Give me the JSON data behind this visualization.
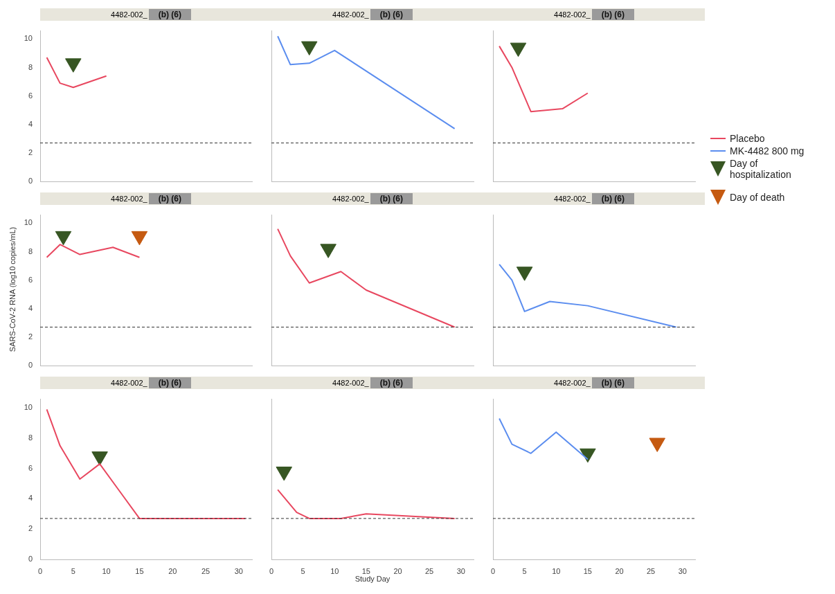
{
  "chart_data": [
    {
      "type": "line",
      "title": "4482-002_",
      "subtitle": "(b) (6)",
      "xlim": [
        0,
        32
      ],
      "xticks": [
        0,
        5,
        10,
        15,
        20,
        25,
        30
      ],
      "ylim": [
        0,
        10.6
      ],
      "yticks": [
        0,
        2,
        4,
        6,
        8,
        10
      ],
      "tick_labels": "y",
      "legend": "right",
      "ref_lines": [
        {
          "axis": "y",
          "value": 2.7,
          "line_style": "dashed",
          "color": "#333333"
        }
      ],
      "series": [
        {
          "name": "Placebo",
          "color": "#e8475f",
          "x": [
            1,
            3,
            5,
            10
          ],
          "values": [
            8.7,
            6.9,
            6.6,
            7.4
          ]
        },
        {
          "name": "Day of hospitalization",
          "type": "scatter",
          "marker": "triangle",
          "color": "#375623",
          "x": [
            5
          ],
          "values": [
            8.3
          ]
        }
      ]
    },
    {
      "type": "line",
      "title": "4482-002_",
      "subtitle": "(b) (6)",
      "xlim": [
        0,
        32
      ],
      "xticks": [
        0,
        5,
        10,
        15,
        20,
        25,
        30
      ],
      "ylim": [
        0,
        10.6
      ],
      "yticks": [
        0,
        2,
        4,
        6,
        8,
        10
      ],
      "tick_labels": false,
      "ref_lines": [
        {
          "axis": "y",
          "value": 2.7,
          "line_style": "dashed",
          "color": "#333333"
        }
      ],
      "series": [
        {
          "name": "MK-4482 800 mg",
          "color": "#5b8def",
          "x": [
            1,
            3,
            6,
            10,
            29
          ],
          "values": [
            10.2,
            8.2,
            8.3,
            9.2,
            3.7
          ]
        },
        {
          "name": "Day of hospitalization",
          "type": "scatter",
          "marker": "triangle",
          "color": "#375623",
          "x": [
            6
          ],
          "values": [
            9.5
          ]
        }
      ]
    },
    {
      "type": "line",
      "title": "4482-002_",
      "subtitle": "(b) (6)",
      "xlim": [
        0,
        32
      ],
      "xticks": [
        0,
        5,
        10,
        15,
        20,
        25,
        30
      ],
      "ylim": [
        0,
        10.6
      ],
      "yticks": [
        0,
        2,
        4,
        6,
        8,
        10
      ],
      "tick_labels": false,
      "ref_lines": [
        {
          "axis": "y",
          "value": 2.7,
          "line_style": "dashed",
          "color": "#333333"
        }
      ],
      "series": [
        {
          "name": "Placebo",
          "color": "#e8475f",
          "x": [
            1,
            3,
            6,
            11,
            15
          ],
          "values": [
            9.5,
            8.0,
            4.9,
            5.1,
            6.2
          ]
        },
        {
          "name": "Day of hospitalization",
          "type": "scatter",
          "marker": "triangle",
          "color": "#375623",
          "x": [
            4
          ],
          "values": [
            9.4
          ]
        }
      ]
    },
    {
      "type": "line",
      "title": "4482-002_",
      "subtitle": "(b) (6)",
      "ylabel": "SARS-CoV-2 RNA (log10 copies/mL)",
      "xlim": [
        0,
        32
      ],
      "xticks": [
        0,
        5,
        10,
        15,
        20,
        25,
        30
      ],
      "ylim": [
        0,
        10.6
      ],
      "yticks": [
        0,
        2,
        4,
        6,
        8,
        10
      ],
      "tick_labels": "y",
      "ref_lines": [
        {
          "axis": "y",
          "value": 2.7,
          "line_style": "dashed",
          "color": "#333333"
        }
      ],
      "series": [
        {
          "name": "Placebo",
          "color": "#e8475f",
          "x": [
            1,
            3,
            6,
            11,
            15
          ],
          "values": [
            7.6,
            8.5,
            7.8,
            8.3,
            7.6
          ]
        },
        {
          "name": "Day of hospitalization",
          "type": "scatter",
          "marker": "triangle",
          "color": "#375623",
          "x": [
            3.5
          ],
          "values": [
            9.1
          ]
        },
        {
          "name": "Day of death",
          "type": "scatter",
          "marker": "triangle",
          "color": "#c55a11",
          "x": [
            15
          ],
          "values": [
            9.1
          ]
        }
      ]
    },
    {
      "type": "line",
      "title": "4482-002_",
      "subtitle": "(b) (6)",
      "xlim": [
        0,
        32
      ],
      "xticks": [
        0,
        5,
        10,
        15,
        20,
        25,
        30
      ],
      "ylim": [
        0,
        10.6
      ],
      "yticks": [
        0,
        2,
        4,
        6,
        8,
        10
      ],
      "tick_labels": false,
      "ref_lines": [
        {
          "axis": "y",
          "value": 2.7,
          "line_style": "dashed",
          "color": "#333333"
        }
      ],
      "series": [
        {
          "name": "Placebo",
          "color": "#e8475f",
          "x": [
            1,
            3,
            6,
            11,
            15,
            29
          ],
          "values": [
            9.6,
            7.7,
            5.8,
            6.6,
            5.3,
            2.7
          ]
        },
        {
          "name": "Day of hospitalization",
          "type": "scatter",
          "marker": "triangle",
          "color": "#375623",
          "x": [
            9
          ],
          "values": [
            8.2
          ]
        }
      ]
    },
    {
      "type": "line",
      "title": "4482-002_",
      "subtitle": "(b) (6)",
      "xlim": [
        0,
        32
      ],
      "xticks": [
        0,
        5,
        10,
        15,
        20,
        25,
        30
      ],
      "ylim": [
        0,
        10.6
      ],
      "yticks": [
        0,
        2,
        4,
        6,
        8,
        10
      ],
      "tick_labels": false,
      "ref_lines": [
        {
          "axis": "y",
          "value": 2.7,
          "line_style": "dashed",
          "color": "#333333"
        }
      ],
      "series": [
        {
          "name": "MK-4482 800 mg",
          "color": "#5b8def",
          "x": [
            1,
            3,
            5,
            9,
            15,
            29
          ],
          "values": [
            7.1,
            6.0,
            3.8,
            4.5,
            4.2,
            2.7
          ]
        },
        {
          "name": "Day of hospitalization",
          "type": "scatter",
          "marker": "triangle",
          "color": "#375623",
          "x": [
            5
          ],
          "values": [
            6.6
          ]
        }
      ]
    },
    {
      "type": "line",
      "title": "4482-002_",
      "subtitle": "(b) (6)",
      "xlim": [
        0,
        32
      ],
      "xticks": [
        0,
        5,
        10,
        15,
        20,
        25,
        30
      ],
      "ylim": [
        0,
        10.6
      ],
      "yticks": [
        0,
        2,
        4,
        6,
        8,
        10
      ],
      "ref_lines": [
        {
          "axis": "y",
          "value": 2.7,
          "line_style": "dashed",
          "color": "#333333"
        }
      ],
      "series": [
        {
          "name": "Placebo",
          "color": "#e8475f",
          "x": [
            1,
            3,
            6,
            9,
            12,
            15,
            31
          ],
          "values": [
            9.9,
            7.5,
            5.3,
            6.3,
            4.5,
            2.7,
            2.7
          ]
        },
        {
          "name": "Day of hospitalization",
          "type": "scatter",
          "marker": "triangle",
          "color": "#375623",
          "x": [
            9
          ],
          "values": [
            6.8
          ]
        }
      ]
    },
    {
      "type": "line",
      "title": "4482-002_",
      "subtitle": "(b) (6)",
      "xlabel": "Study Day",
      "xlim": [
        0,
        32
      ],
      "xticks": [
        0,
        5,
        10,
        15,
        20,
        25,
        30
      ],
      "ylim": [
        0,
        10.6
      ],
      "yticks": [
        0,
        2,
        4,
        6,
        8,
        10
      ],
      "tick_labels": "x",
      "ref_lines": [
        {
          "axis": "y",
          "value": 2.7,
          "line_style": "dashed",
          "color": "#333333"
        }
      ],
      "series": [
        {
          "name": "Placebo",
          "color": "#e8475f",
          "x": [
            1,
            4,
            6,
            11,
            15,
            29
          ],
          "values": [
            4.6,
            3.1,
            2.7,
            2.7,
            3.0,
            2.7
          ]
        },
        {
          "name": "Day of hospitalization",
          "type": "scatter",
          "marker": "triangle",
          "color": "#375623",
          "x": [
            2
          ],
          "values": [
            5.8
          ]
        }
      ]
    },
    {
      "type": "line",
      "title": "4482-002_",
      "subtitle": "(b) (6)",
      "xlim": [
        0,
        32
      ],
      "xticks": [
        0,
        5,
        10,
        15,
        20,
        25,
        30
      ],
      "ylim": [
        0,
        10.6
      ],
      "yticks": [
        0,
        2,
        4,
        6,
        8,
        10
      ],
      "tick_labels": "x",
      "ref_lines": [
        {
          "axis": "y",
          "value": 2.7,
          "line_style": "dashed",
          "color": "#333333"
        }
      ],
      "series": [
        {
          "name": "MK-4482 800 mg",
          "color": "#5b8def",
          "x": [
            1,
            3,
            6,
            10,
            15
          ],
          "values": [
            9.3,
            7.6,
            7.0,
            8.4,
            6.6
          ]
        },
        {
          "name": "Day of hospitalization",
          "type": "scatter",
          "marker": "triangle",
          "color": "#375623",
          "x": [
            15
          ],
          "values": [
            7.0
          ]
        },
        {
          "name": "Day of death",
          "type": "scatter",
          "marker": "triangle",
          "color": "#c55a11",
          "x": [
            26
          ],
          "values": [
            7.7
          ]
        }
      ]
    }
  ]
}
